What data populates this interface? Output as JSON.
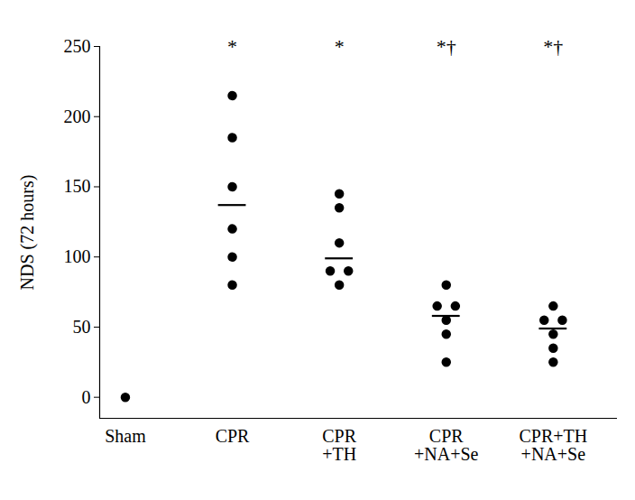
{
  "chart_data": {
    "type": "scatter",
    "ylabel": "NDS (72 hours)",
    "categories": [
      "Sham",
      "CPR",
      "CPR\n+TH",
      "CPR\n+NA+Se",
      "CPR+TH\n+NA+Se"
    ],
    "values": [
      [
        0
      ],
      [
        215,
        185,
        150,
        120,
        100,
        80
      ],
      [
        145,
        135,
        110,
        90,
        90,
        80
      ],
      [
        80,
        65,
        65,
        55,
        45,
        25
      ],
      [
        65,
        55,
        55,
        45,
        35,
        25
      ]
    ],
    "means": [
      null,
      137,
      99,
      58,
      49
    ],
    "annotations": [
      null,
      "*",
      "*",
      "*†",
      "*†"
    ],
    "color": "#000000",
    "marker": "circle",
    "ylim": [
      -15,
      250
    ],
    "yticks": [
      0,
      50,
      100,
      150,
      200,
      250
    ],
    "grid": false
  }
}
